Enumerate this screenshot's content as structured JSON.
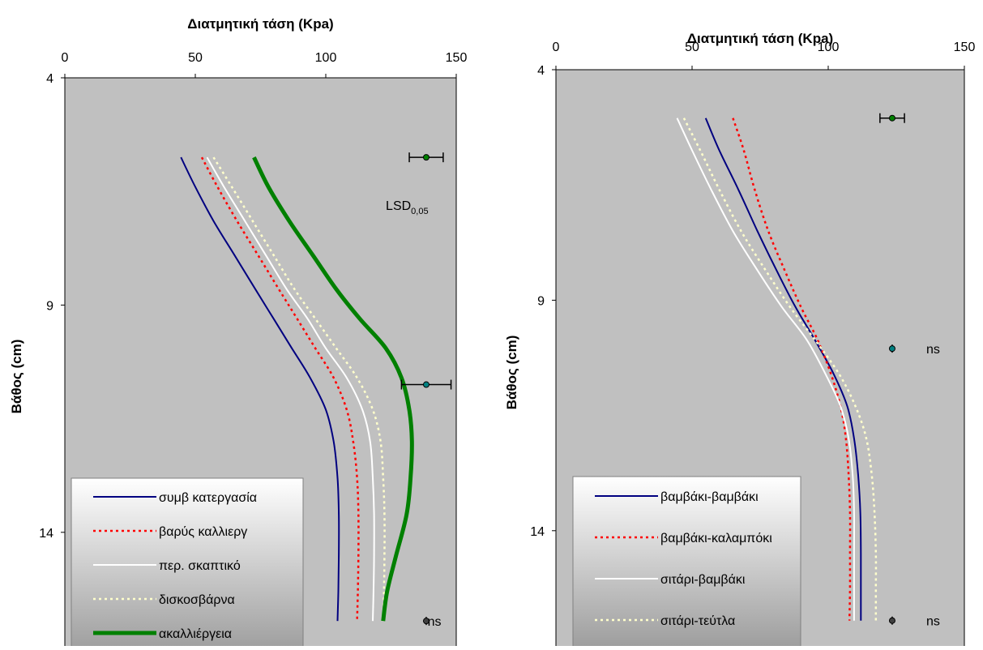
{
  "chart_data": [
    {
      "type": "line",
      "orientation": "depth-profile",
      "xlabel": "Διατμητική τάση (Kpa)",
      "ylabel": "Βάθος (cm)",
      "xlim": [
        0,
        150
      ],
      "ylim": [
        4,
        16.5
      ],
      "y_inverted": true,
      "x_ticks": [
        "0",
        "50",
        "100",
        "150"
      ],
      "y_ticks": [
        "4",
        "9",
        "14"
      ],
      "plot_background": "#c0c0c0",
      "legend_position": "bottom-left",
      "series": [
        {
          "name": "συμβ κατεργασία",
          "color": "#000080",
          "style": "solid",
          "points": [
            [
              44.5,
              5.75
            ],
            [
              50,
              6.4
            ],
            [
              57,
              7.15
            ],
            [
              65,
              7.9
            ],
            [
              73,
              8.65
            ],
            [
              80,
              9.3
            ],
            [
              87,
              9.95
            ],
            [
              94,
              10.6
            ],
            [
              100,
              11.3
            ],
            [
              103,
              12
            ],
            [
              104.5,
              12.8
            ],
            [
              105,
              13.6
            ],
            [
              105,
              14.5
            ],
            [
              104.8,
              15.3
            ],
            [
              104.5,
              15.95
            ]
          ]
        },
        {
          "name": "βαρύς καλλιεργ",
          "color": "#ff0000",
          "style": "dotted",
          "points": [
            [
              52.5,
              5.75
            ],
            [
              58.5,
              6.4
            ],
            [
              66,
              7.15
            ],
            [
              74,
              7.9
            ],
            [
              82,
              8.65
            ],
            [
              89,
              9.3
            ],
            [
              96,
              9.95
            ],
            [
              103,
              10.6
            ],
            [
              108,
              11.3
            ],
            [
              110.5,
              12
            ],
            [
              112,
              12.8
            ],
            [
              112.5,
              13.6
            ],
            [
              112.5,
              14.5
            ],
            [
              112.3,
              15.3
            ],
            [
              112,
              15.95
            ]
          ]
        },
        {
          "name": "περ. σκαπτικό",
          "color": "#ffffff",
          "style": "solid",
          "points": [
            [
              54.5,
              5.75
            ],
            [
              61,
              6.4
            ],
            [
              69,
              7.15
            ],
            [
              77,
              7.9
            ],
            [
              85,
              8.65
            ],
            [
              93,
              9.3
            ],
            [
              100,
              9.95
            ],
            [
              108,
              10.6
            ],
            [
              114,
              11.3
            ],
            [
              117,
              12
            ],
            [
              118,
              12.8
            ],
            [
              118.5,
              13.6
            ],
            [
              118.5,
              14.5
            ],
            [
              118.3,
              15.3
            ],
            [
              118,
              15.95
            ]
          ]
        },
        {
          "name": "δισκοσβάρνα",
          "color": "#ffffcc",
          "style": "dotted",
          "points": [
            [
              57,
              5.75
            ],
            [
              64,
              6.4
            ],
            [
              72,
              7.15
            ],
            [
              80,
              7.9
            ],
            [
              88,
              8.65
            ],
            [
              96,
              9.3
            ],
            [
              104,
              9.95
            ],
            [
              112,
              10.6
            ],
            [
              118,
              11.3
            ],
            [
              121,
              12
            ],
            [
              122,
              12.8
            ],
            [
              122.5,
              13.6
            ],
            [
              122.5,
              14.5
            ],
            [
              122.3,
              15.3
            ],
            [
              122,
              15.95
            ]
          ]
        },
        {
          "name": "ακαλλιέργεια",
          "color": "#008000",
          "style": "thick",
          "points": [
            [
              72.5,
              5.75
            ],
            [
              78,
              6.4
            ],
            [
              86,
              7.15
            ],
            [
              95,
              7.9
            ],
            [
              104,
              8.65
            ],
            [
              113,
              9.3
            ],
            [
              123,
              9.95
            ],
            [
              129,
              10.6
            ],
            [
              132,
              11.3
            ],
            [
              133,
              12
            ],
            [
              132.5,
              12.8
            ],
            [
              131,
              13.6
            ],
            [
              127,
              14.5
            ],
            [
              123.5,
              15.3
            ],
            [
              122,
              15.95
            ]
          ]
        }
      ],
      "error_bars": [
        {
          "x": 138.5,
          "y": 5.75,
          "half_width": 6.5,
          "color": "#008000"
        },
        {
          "x": 138.5,
          "y": 10.75,
          "half_width": 9.5,
          "color": "#008080"
        },
        {
          "x": 138.5,
          "y": 15.95,
          "half_width": 0,
          "color": "#404040"
        }
      ],
      "annotations": [
        {
          "text": "LSD",
          "subscript": "0,05",
          "x": 123,
          "y": 6.8
        },
        {
          "text": "ns",
          "x": 139,
          "y": 15.95
        }
      ]
    },
    {
      "type": "line",
      "orientation": "depth-profile",
      "xlabel": "Διατμητική τάση (Kpa)",
      "ylabel": "Βάθος (cm)",
      "xlim": [
        0,
        150
      ],
      "ylim": [
        4,
        16.5
      ],
      "y_inverted": true,
      "x_ticks": [
        "0",
        "50",
        "100",
        "150"
      ],
      "y_ticks": [
        "4",
        "9",
        "14"
      ],
      "plot_background": "#c0c0c0",
      "legend_position": "bottom-left",
      "series": [
        {
          "name": "βαμβάκι-βαμβάκι",
          "color": "#000080",
          "style": "solid",
          "points": [
            [
              55,
              5.05
            ],
            [
              60,
              5.75
            ],
            [
              67,
              6.6
            ],
            [
              74,
              7.5
            ],
            [
              81,
              8.35
            ],
            [
              88,
              9.15
            ],
            [
              95,
              9.85
            ],
            [
              102,
              10.6
            ],
            [
              107,
              11.3
            ],
            [
              109.5,
              12
            ],
            [
              111,
              12.8
            ],
            [
              111.8,
              13.6
            ],
            [
              112,
              14.5
            ],
            [
              112,
              15.25
            ],
            [
              112,
              15.95
            ]
          ]
        },
        {
          "name": "βαμβάκι-καλαμπόκι",
          "color": "#ff0000",
          "style": "dotted",
          "points": [
            [
              65,
              5.05
            ],
            [
              69,
              5.75
            ],
            [
              73,
              6.6
            ],
            [
              78,
              7.5
            ],
            [
              84,
              8.35
            ],
            [
              90,
              9.15
            ],
            [
              96,
              9.85
            ],
            [
              101,
              10.6
            ],
            [
              104.5,
              11.3
            ],
            [
              106.5,
              12
            ],
            [
              107.5,
              12.8
            ],
            [
              108,
              13.6
            ],
            [
              108,
              14.5
            ],
            [
              108,
              15.25
            ],
            [
              107.8,
              15.95
            ]
          ]
        },
        {
          "name": "σιτάρι-βαμβάκι",
          "color": "#ffffff",
          "style": "solid",
          "points": [
            [
              44.5,
              5.05
            ],
            [
              50,
              5.75
            ],
            [
              57,
              6.6
            ],
            [
              65,
              7.5
            ],
            [
              74,
              8.35
            ],
            [
              83,
              9.15
            ],
            [
              92,
              9.85
            ],
            [
              99,
              10.6
            ],
            [
              104.5,
              11.3
            ],
            [
              107.5,
              12
            ],
            [
              109,
              12.8
            ],
            [
              109.5,
              13.6
            ],
            [
              109.5,
              14.5
            ],
            [
              109.5,
              15.25
            ],
            [
              109.5,
              15.95
            ]
          ]
        },
        {
          "name": "σιτάρι-τεύτλα",
          "color": "#ffffcc",
          "style": "dotted",
          "points": [
            [
              47,
              5.05
            ],
            [
              53,
              5.75
            ],
            [
              60,
              6.6
            ],
            [
              68,
              7.5
            ],
            [
              77,
              8.35
            ],
            [
              86,
              9.15
            ],
            [
              95,
              9.85
            ],
            [
              104,
              10.6
            ],
            [
              110,
              11.3
            ],
            [
              114,
              12
            ],
            [
              116,
              12.8
            ],
            [
              117,
              13.6
            ],
            [
              117.5,
              14.5
            ],
            [
              117.5,
              15.25
            ],
            [
              117.5,
              15.95
            ]
          ]
        }
      ],
      "error_bars": [
        {
          "x": 123.5,
          "y": 5.05,
          "half_width": 4.5,
          "color": "#008000"
        },
        {
          "x": 123.5,
          "y": 10.05,
          "half_width": 0,
          "color": "#008080"
        },
        {
          "x": 123.5,
          "y": 15.95,
          "half_width": 0,
          "color": "#404040"
        }
      ],
      "annotations": [
        {
          "text": "ns",
          "x": 136,
          "y": 10.05
        },
        {
          "text": "ns",
          "x": 136,
          "y": 15.95
        }
      ]
    }
  ]
}
